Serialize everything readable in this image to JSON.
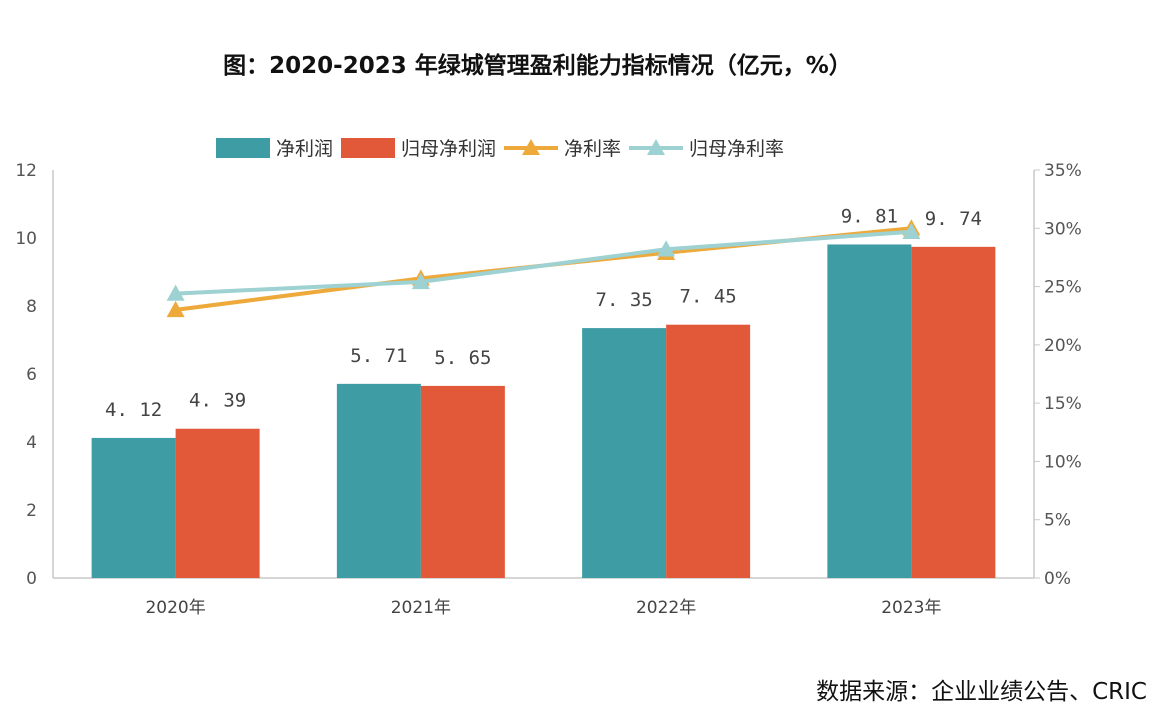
{
  "title": "图：2020-2023 年绿城管理盈利能力指标情况（亿元，%）",
  "source": "数据来源：企业业绩公告、CRIC",
  "colors": {
    "net_profit": "#3d9ca4",
    "parent_net_profit": "#e2593a",
    "net_margin": "#eda93a",
    "parent_net_margin": "#9dd1d2"
  },
  "chart_data": {
    "type": "bar",
    "categories": [
      "2020年",
      "2021年",
      "2022年",
      "2023年"
    ],
    "series": [
      {
        "name": "净利润",
        "type": "bar",
        "axis": "left",
        "values": [
          4.12,
          5.71,
          7.35,
          9.81
        ],
        "labels": [
          "4. 12",
          "5. 71",
          "7. 35",
          "9. 81"
        ]
      },
      {
        "name": "归母净利润",
        "type": "bar",
        "axis": "left",
        "values": [
          4.39,
          5.65,
          7.45,
          9.74
        ],
        "labels": [
          "4. 39",
          "5. 65",
          "7. 45",
          "9. 74"
        ]
      },
      {
        "name": "净利率",
        "type": "line",
        "axis": "right",
        "values": [
          23.0,
          25.7,
          27.9,
          30.0
        ]
      },
      {
        "name": "归母净利率",
        "type": "line",
        "axis": "right",
        "values": [
          24.4,
          25.4,
          28.2,
          29.7
        ]
      }
    ],
    "ylim": [
      0,
      12
    ],
    "y_ticks": [
      "0",
      "2",
      "4",
      "6",
      "8",
      "10",
      "12"
    ],
    "y2lim": [
      0,
      35
    ],
    "y2_ticks": [
      "0%",
      "5%",
      "10%",
      "15%",
      "20%",
      "25%",
      "30%",
      "35%"
    ],
    "legend_position": "top",
    "grid": false
  }
}
